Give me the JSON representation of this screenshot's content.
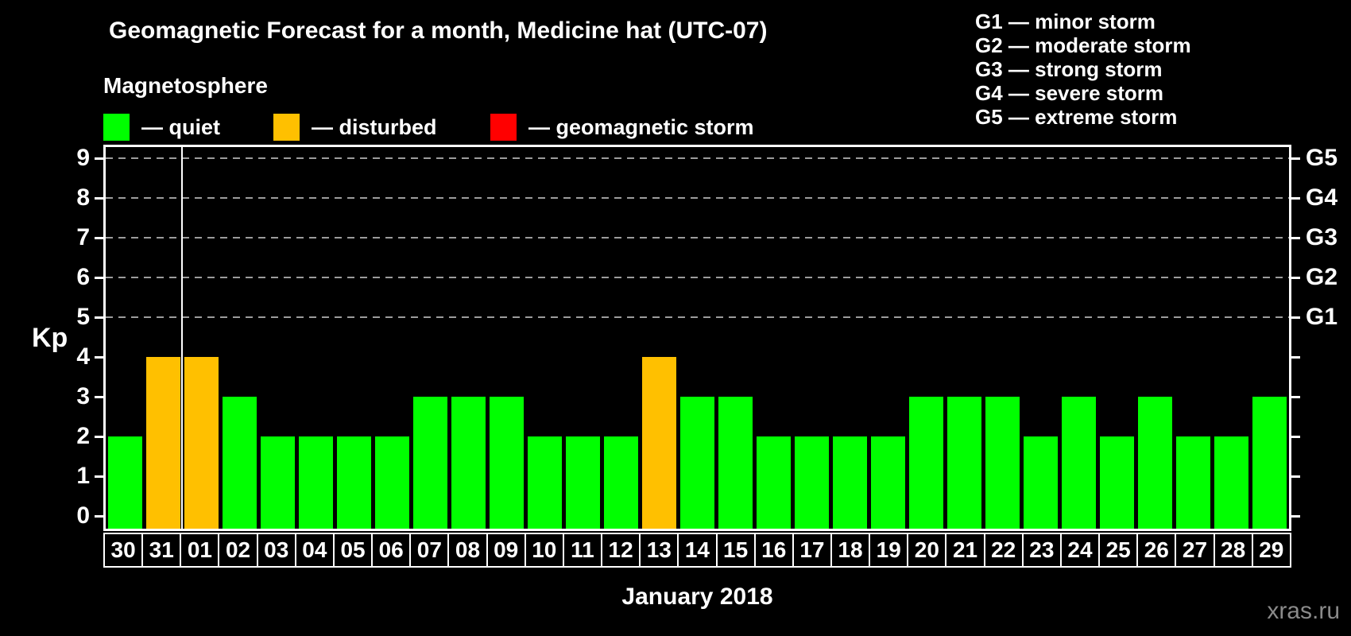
{
  "header": {
    "title": "Geomagnetic Forecast for a month, Medicine hat (UTC-07)",
    "subtitle": "Magnetosphere"
  },
  "legend": {
    "items": [
      {
        "name": "quiet",
        "label": "— quiet",
        "color": "#00FF00"
      },
      {
        "name": "disturbed",
        "label": "— disturbed",
        "color": "#FFC000"
      },
      {
        "name": "geomagnetic-storm",
        "label": "— geomagnetic storm",
        "color": "#FF0000"
      }
    ]
  },
  "storm_scale_legend": [
    "G1 — minor storm",
    "G2 — moderate storm",
    "G3 — strong storm",
    "G4 — severe storm",
    "G5 — extreme storm"
  ],
  "chart_data": {
    "type": "bar",
    "title": "Geomagnetic Forecast for a month, Medicine hat (UTC-07)",
    "ylabel": "Kp",
    "xlabel": "January 2018",
    "ylim": [
      0,
      9.4
    ],
    "yticks": [
      0,
      1,
      2,
      3,
      4,
      5,
      6,
      7,
      8,
      9
    ],
    "gridlines_at": [
      5,
      6,
      7,
      8,
      9
    ],
    "grid_style": "dashed-gray",
    "legend_position": "top",
    "right_axis_labels": [
      {
        "level": 5,
        "label": "G1"
      },
      {
        "level": 6,
        "label": "G2"
      },
      {
        "level": 7,
        "label": "G3"
      },
      {
        "level": 8,
        "label": "G4"
      },
      {
        "level": 9,
        "label": "G5"
      }
    ],
    "categories": [
      "30",
      "31",
      "01",
      "02",
      "03",
      "04",
      "05",
      "06",
      "07",
      "08",
      "09",
      "10",
      "11",
      "12",
      "13",
      "14",
      "15",
      "16",
      "17",
      "18",
      "19",
      "20",
      "21",
      "22",
      "23",
      "24",
      "25",
      "26",
      "27",
      "28",
      "29"
    ],
    "values": [
      2,
      4,
      4,
      3,
      2,
      2,
      2,
      2,
      3,
      3,
      3,
      2,
      2,
      2,
      4,
      3,
      3,
      2,
      2,
      2,
      2,
      3,
      3,
      3,
      2,
      3,
      2,
      3,
      2,
      2,
      3
    ],
    "statuses": [
      "quiet",
      "disturbed",
      "disturbed",
      "quiet",
      "quiet",
      "quiet",
      "quiet",
      "quiet",
      "quiet",
      "quiet",
      "quiet",
      "quiet",
      "quiet",
      "quiet",
      "disturbed",
      "quiet",
      "quiet",
      "quiet",
      "quiet",
      "quiet",
      "quiet",
      "quiet",
      "quiet",
      "quiet",
      "quiet",
      "quiet",
      "quiet",
      "quiet",
      "quiet",
      "quiet",
      "quiet"
    ],
    "status_colors": {
      "quiet": "#00FF00",
      "disturbed": "#FFC000",
      "storm": "#FF0000"
    },
    "month_separator_after_index": 1
  },
  "watermark": "xras.ru",
  "colors": {
    "background": "#000000",
    "text": "#FFFFFF",
    "grid": "#9C9C9C",
    "watermark": "#8A8A8A"
  }
}
